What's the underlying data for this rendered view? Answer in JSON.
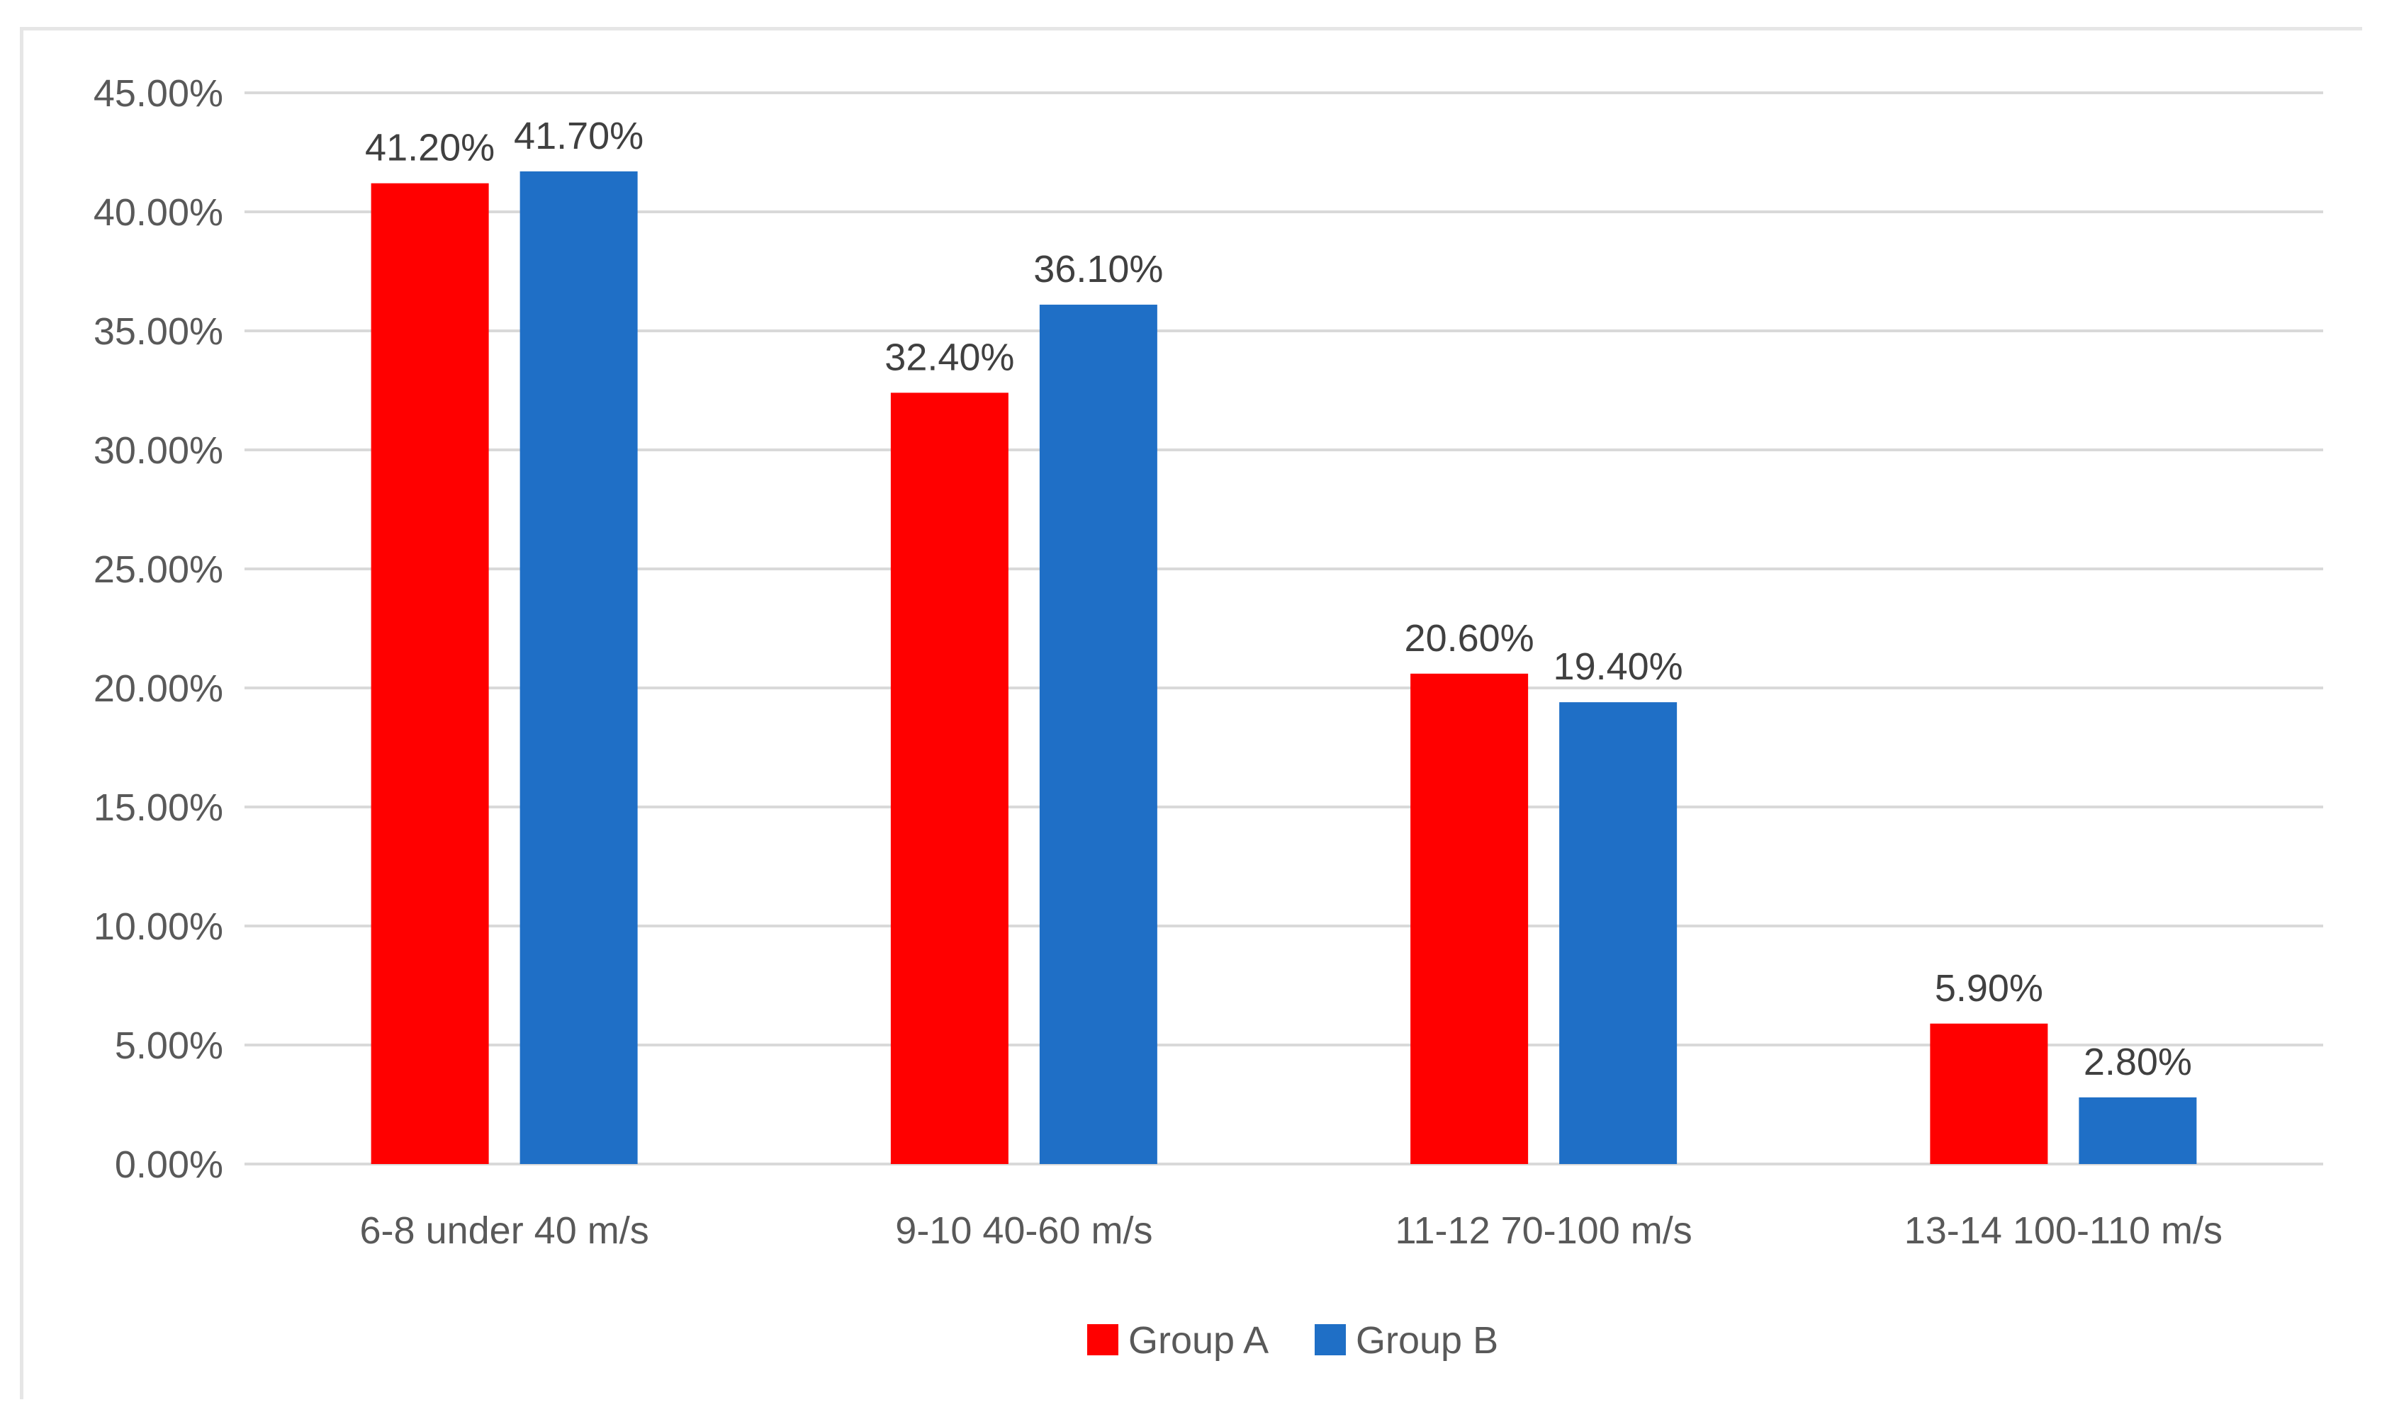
{
  "chart_data": {
    "type": "bar",
    "title": "",
    "xlabel": "",
    "ylabel": "",
    "categories": [
      "6-8 under 40 m/s",
      "9-10 40-60 m/s",
      "11-12 70-100 m/s",
      "13-14 100-110 m/s"
    ],
    "series": [
      {
        "name": "Group A",
        "color": "#ff0000",
        "values": [
          41.2,
          32.4,
          20.6,
          5.9
        ],
        "labels": [
          "41.20%",
          "32.40%",
          "20.60%",
          "5.90%"
        ]
      },
      {
        "name": "Group B",
        "color": "#1f6fc6",
        "values": [
          41.7,
          36.1,
          19.4,
          2.8
        ],
        "labels": [
          "41.70%",
          "36.10%",
          "19.40%",
          "2.80%"
        ]
      }
    ],
    "ylim": [
      0,
      45
    ],
    "yticks": [
      0,
      5,
      10,
      15,
      20,
      25,
      30,
      35,
      40,
      45
    ],
    "ytick_labels": [
      "0.00%",
      "5.00%",
      "10.00%",
      "15.00%",
      "20.00%",
      "25.00%",
      "30.00%",
      "35.00%",
      "40.00%",
      "45.00%"
    ],
    "grid": true,
    "legend": "bottom",
    "gridline_color": "#d9d9d9"
  }
}
